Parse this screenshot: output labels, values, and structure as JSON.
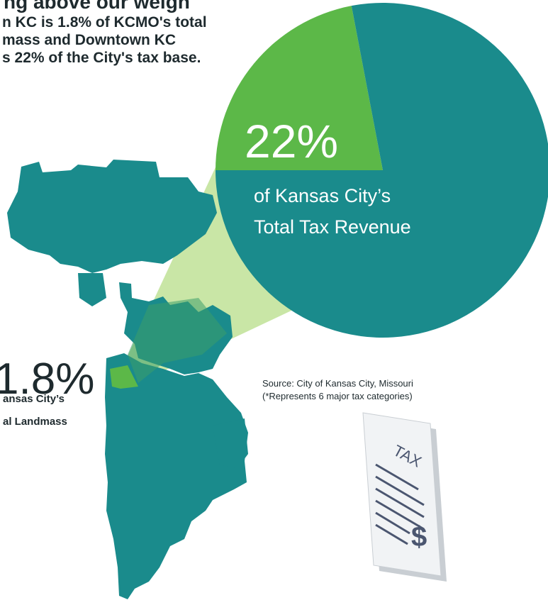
{
  "chart_data": {
    "type": "pie",
    "title": "ng above our weigh",
    "subtitle_lines": [
      "n KC is 1.8% of KCMO's total",
      "mass and Downtown KC",
      "s 22% of the City's tax base."
    ],
    "categories": [
      null,
      null
    ],
    "values": [
      22,
      78
    ],
    "value_labels": [
      "22%",
      null
    ],
    "colors": [
      "#5cb848",
      "#1a8b8c"
    ],
    "slice_caption": [
      "of  Kansas City’s",
      "Total Tax Revenue"
    ],
    "land_value": 1.8,
    "land_value_label": "1.8%",
    "land_caption": [
      "ansas City’s",
      "al Landmass"
    ],
    "source_lines": [
      "Source: City of Kansas City, Missouri",
      "(*Represents 6 major tax categories)"
    ],
    "icon_texts": [
      "TAX",
      "$"
    ]
  }
}
